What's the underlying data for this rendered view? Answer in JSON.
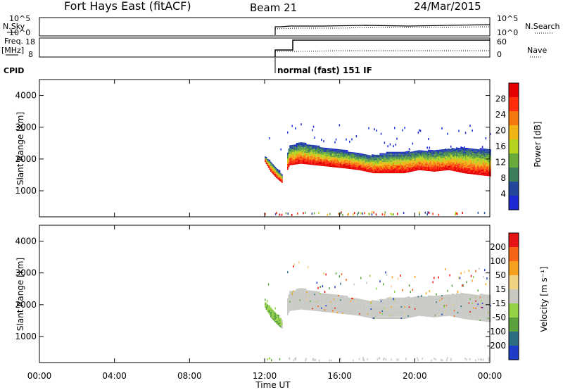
{
  "header": {
    "station": "Fort Hays East (fitACF)",
    "beam": "Beam 21",
    "date": "24/Mar/2015"
  },
  "noise_panel": {
    "left_label": "N.Sky",
    "left_ticks": [
      "10^5",
      "10^0"
    ],
    "right_label": "N.Search",
    "right_ticks": [
      "10^5",
      "10^0"
    ]
  },
  "freq_panel": {
    "left_label": "Freq.",
    "left_unit": "[MHz]",
    "left_ticks": [
      "18",
      "8"
    ],
    "right_label": "Nave",
    "right_ticks": [
      "60",
      "0"
    ]
  },
  "cpid": {
    "label": "CPID",
    "mode": "normal (fast) 151 IF"
  },
  "time_axis": {
    "title": "Time UT",
    "tick_labels": [
      "00:00",
      "04:00",
      "08:00",
      "12:00",
      "16:00",
      "20:00",
      "00:00"
    ]
  },
  "colors": {
    "power": [
      "#1e28d2",
      "#23469b",
      "#3c7d5a",
      "#69aa3c",
      "#b4d21e",
      "#f0b414",
      "#f5780f",
      "#ff2d0a",
      "#e60000"
    ],
    "velocity": [
      "#1e3cc8",
      "#2d6e82",
      "#5aa03c",
      "#96d246",
      "#c8c8c0",
      "#f0d282",
      "#f5a01e",
      "#f56414",
      "#e61414"
    ],
    "background_grey": "#c8c8c4"
  },
  "chart_data": [
    {
      "type": "heatmap",
      "title": "Power",
      "ylabel": "Slant Range [km]",
      "ylim": [
        180,
        4500
      ],
      "ytick_labels": [
        "1000",
        "2000",
        "3000",
        "4000"
      ],
      "colorbar": {
        "label": "Power [dB]",
        "range": [
          0,
          32
        ],
        "tick_labels": [
          "4",
          "8",
          "12",
          "16",
          "20",
          "24",
          "28"
        ]
      },
      "scatter_echo_band": {
        "x_hours": [
          12.0,
          12.3,
          12.6,
          12.9,
          13.3,
          13.9,
          14.7,
          15.5,
          16.3,
          17.0,
          17.8,
          18.6,
          19.4,
          20.2,
          21.0,
          21.8,
          22.6,
          23.3,
          24.0
        ],
        "lower_km": [
          1900,
          1600,
          1400,
          1250,
          1800,
          1850,
          1800,
          1750,
          1700,
          1650,
          1550,
          1550,
          1550,
          1650,
          1600,
          1650,
          1550,
          1500,
          1450
        ],
        "upper_km": [
          2050,
          1900,
          1700,
          1500,
          2400,
          2500,
          2400,
          2300,
          2250,
          2150,
          2100,
          2200,
          2200,
          2250,
          2250,
          2300,
          2350,
          2300,
          2300
        ]
      }
    },
    {
      "type": "heatmap",
      "title": "Velocity",
      "ylabel": "Slant Range [km]",
      "ylim": [
        180,
        4500
      ],
      "ytick_labels": [
        "1000",
        "2000",
        "3000",
        "4000"
      ],
      "colorbar": {
        "label": "Velocity [m s⁻¹]",
        "levels": [
          250,
          200,
          100,
          50,
          15,
          -15,
          -50,
          -100,
          -200,
          -250
        ],
        "tick_labels": [
          "200",
          "100",
          "50",
          "15",
          "-15",
          "-50",
          "-100",
          "-200"
        ]
      },
      "scatter_echo_band": {
        "x_hours": [
          12.0,
          12.3,
          12.6,
          12.9,
          13.3,
          13.9,
          14.7,
          15.5,
          16.3,
          17.0,
          17.8,
          18.6,
          19.4,
          20.2,
          21.0,
          21.8,
          22.6,
          23.3,
          24.0
        ],
        "lower_km": [
          1900,
          1600,
          1400,
          1250,
          1800,
          1850,
          1800,
          1750,
          1700,
          1650,
          1550,
          1550,
          1550,
          1650,
          1600,
          1650,
          1550,
          1500,
          1450
        ],
        "upper_km": [
          2050,
          1900,
          1700,
          1500,
          2400,
          2500,
          2400,
          2300,
          2250,
          2150,
          2100,
          2200,
          2200,
          2250,
          2250,
          2300,
          2350,
          2300,
          2300
        ]
      }
    }
  ]
}
